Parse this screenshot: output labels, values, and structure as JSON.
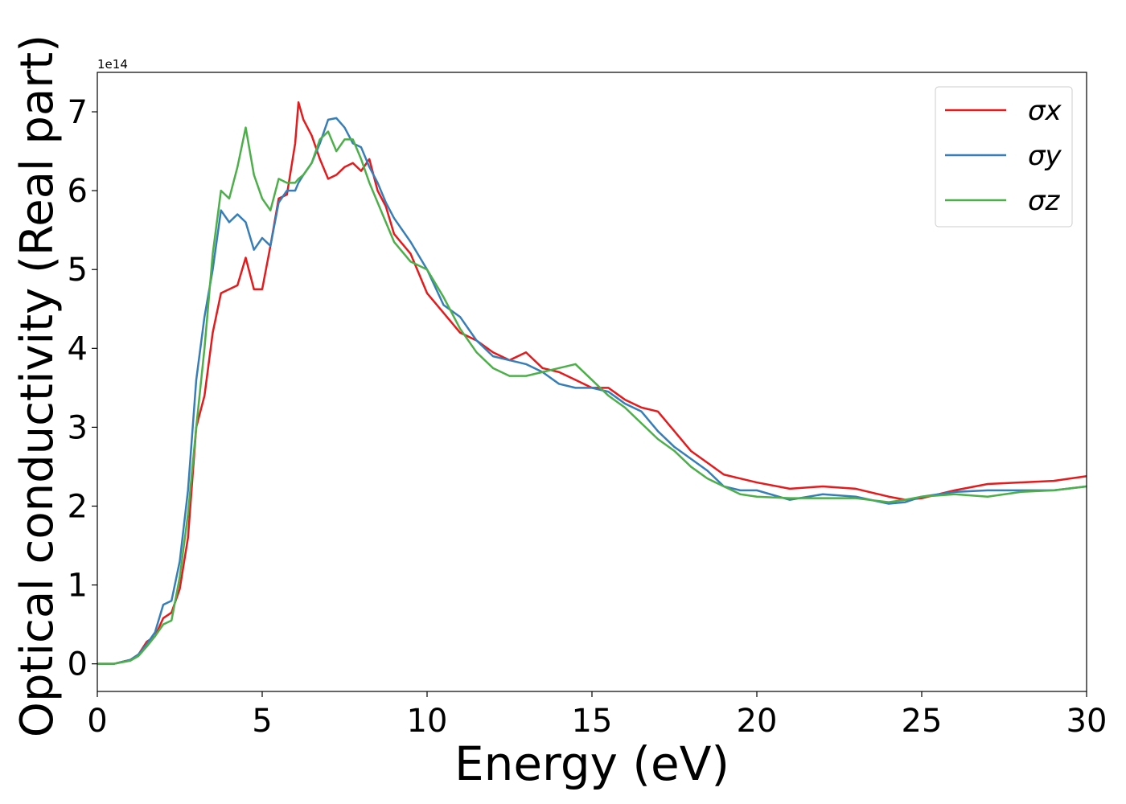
{
  "chart_data": {
    "type": "line",
    "xlabel": "Energy (eV)",
    "ylabel": "Optical conductivity (Real part)",
    "y_offset_text": "1e14",
    "xlim": [
      0,
      30
    ],
    "xticks": [
      0,
      5,
      10,
      15,
      20,
      25,
      30
    ],
    "ylim": [
      -0.35,
      7.5
    ],
    "yticks": [
      0,
      1,
      2,
      3,
      4,
      5,
      6,
      7
    ],
    "legend": "upper right",
    "x": [
      0,
      0.5,
      1,
      1.25,
      1.5,
      1.75,
      2,
      2.25,
      2.5,
      2.75,
      3,
      3.25,
      3.5,
      3.75,
      4,
      4.25,
      4.5,
      4.75,
      5,
      5.25,
      5.5,
      5.75,
      6,
      6.1,
      6.25,
      6.5,
      6.75,
      7,
      7.25,
      7.5,
      7.75,
      8,
      8.25,
      8.5,
      8.75,
      9,
      9.5,
      10,
      10.5,
      11,
      11.5,
      12,
      12.5,
      13,
      13.5,
      14,
      14.5,
      15,
      15.5,
      16,
      16.5,
      17,
      17.5,
      18,
      18.5,
      19,
      19.5,
      20,
      21,
      22,
      23,
      24,
      24.5,
      25,
      26,
      27,
      28,
      29,
      30
    ],
    "series": [
      {
        "name": "σx",
        "color": "#e41a1c",
        "values": [
          0,
          0,
          0.05,
          0.12,
          0.28,
          0.35,
          0.58,
          0.65,
          0.95,
          1.6,
          3.0,
          3.4,
          4.2,
          4.7,
          4.75,
          4.8,
          5.15,
          4.75,
          4.75,
          5.3,
          5.9,
          5.95,
          6.6,
          7.12,
          6.9,
          6.7,
          6.4,
          6.15,
          6.2,
          6.3,
          6.35,
          6.25,
          6.4,
          6.0,
          5.8,
          5.45,
          5.2,
          4.7,
          4.45,
          4.2,
          4.1,
          3.95,
          3.85,
          3.95,
          3.75,
          3.7,
          3.6,
          3.5,
          3.5,
          3.35,
          3.25,
          3.2,
          2.95,
          2.7,
          2.55,
          2.4,
          2.35,
          2.3,
          2.22,
          2.25,
          2.22,
          2.12,
          2.08,
          2.1,
          2.2,
          2.28,
          2.3,
          2.32,
          2.38
        ]
      },
      {
        "name": "σy",
        "color": "#377eb8",
        "values": [
          0,
          0,
          0.05,
          0.12,
          0.25,
          0.4,
          0.75,
          0.8,
          1.3,
          2.2,
          3.6,
          4.4,
          5.0,
          5.75,
          5.6,
          5.7,
          5.6,
          5.25,
          5.4,
          5.3,
          5.85,
          6.0,
          6.0,
          6.1,
          6.2,
          6.35,
          6.6,
          6.9,
          6.92,
          6.8,
          6.6,
          6.55,
          6.3,
          6.1,
          5.85,
          5.65,
          5.35,
          5.0,
          4.55,
          4.4,
          4.1,
          3.9,
          3.85,
          3.8,
          3.7,
          3.55,
          3.5,
          3.5,
          3.45,
          3.3,
          3.2,
          2.95,
          2.75,
          2.6,
          2.45,
          2.25,
          2.2,
          2.2,
          2.08,
          2.15,
          2.12,
          2.03,
          2.05,
          2.12,
          2.18,
          2.2,
          2.2,
          2.2,
          2.25
        ]
      },
      {
        "name": "σz",
        "color": "#4daf4a",
        "values": [
          0,
          0,
          0.04,
          0.1,
          0.22,
          0.35,
          0.5,
          0.55,
          1.1,
          1.9,
          3.0,
          4.0,
          5.2,
          6.0,
          5.9,
          6.3,
          6.8,
          6.2,
          5.9,
          5.75,
          6.15,
          6.1,
          6.1,
          6.15,
          6.2,
          6.35,
          6.65,
          6.75,
          6.5,
          6.65,
          6.65,
          6.4,
          6.1,
          5.85,
          5.6,
          5.35,
          5.1,
          5.0,
          4.65,
          4.25,
          3.95,
          3.75,
          3.65,
          3.65,
          3.7,
          3.75,
          3.8,
          3.6,
          3.4,
          3.25,
          3.05,
          2.85,
          2.7,
          2.5,
          2.35,
          2.25,
          2.15,
          2.12,
          2.1,
          2.1,
          2.1,
          2.05,
          2.08,
          2.12,
          2.15,
          2.12,
          2.18,
          2.2,
          2.25
        ]
      }
    ]
  }
}
